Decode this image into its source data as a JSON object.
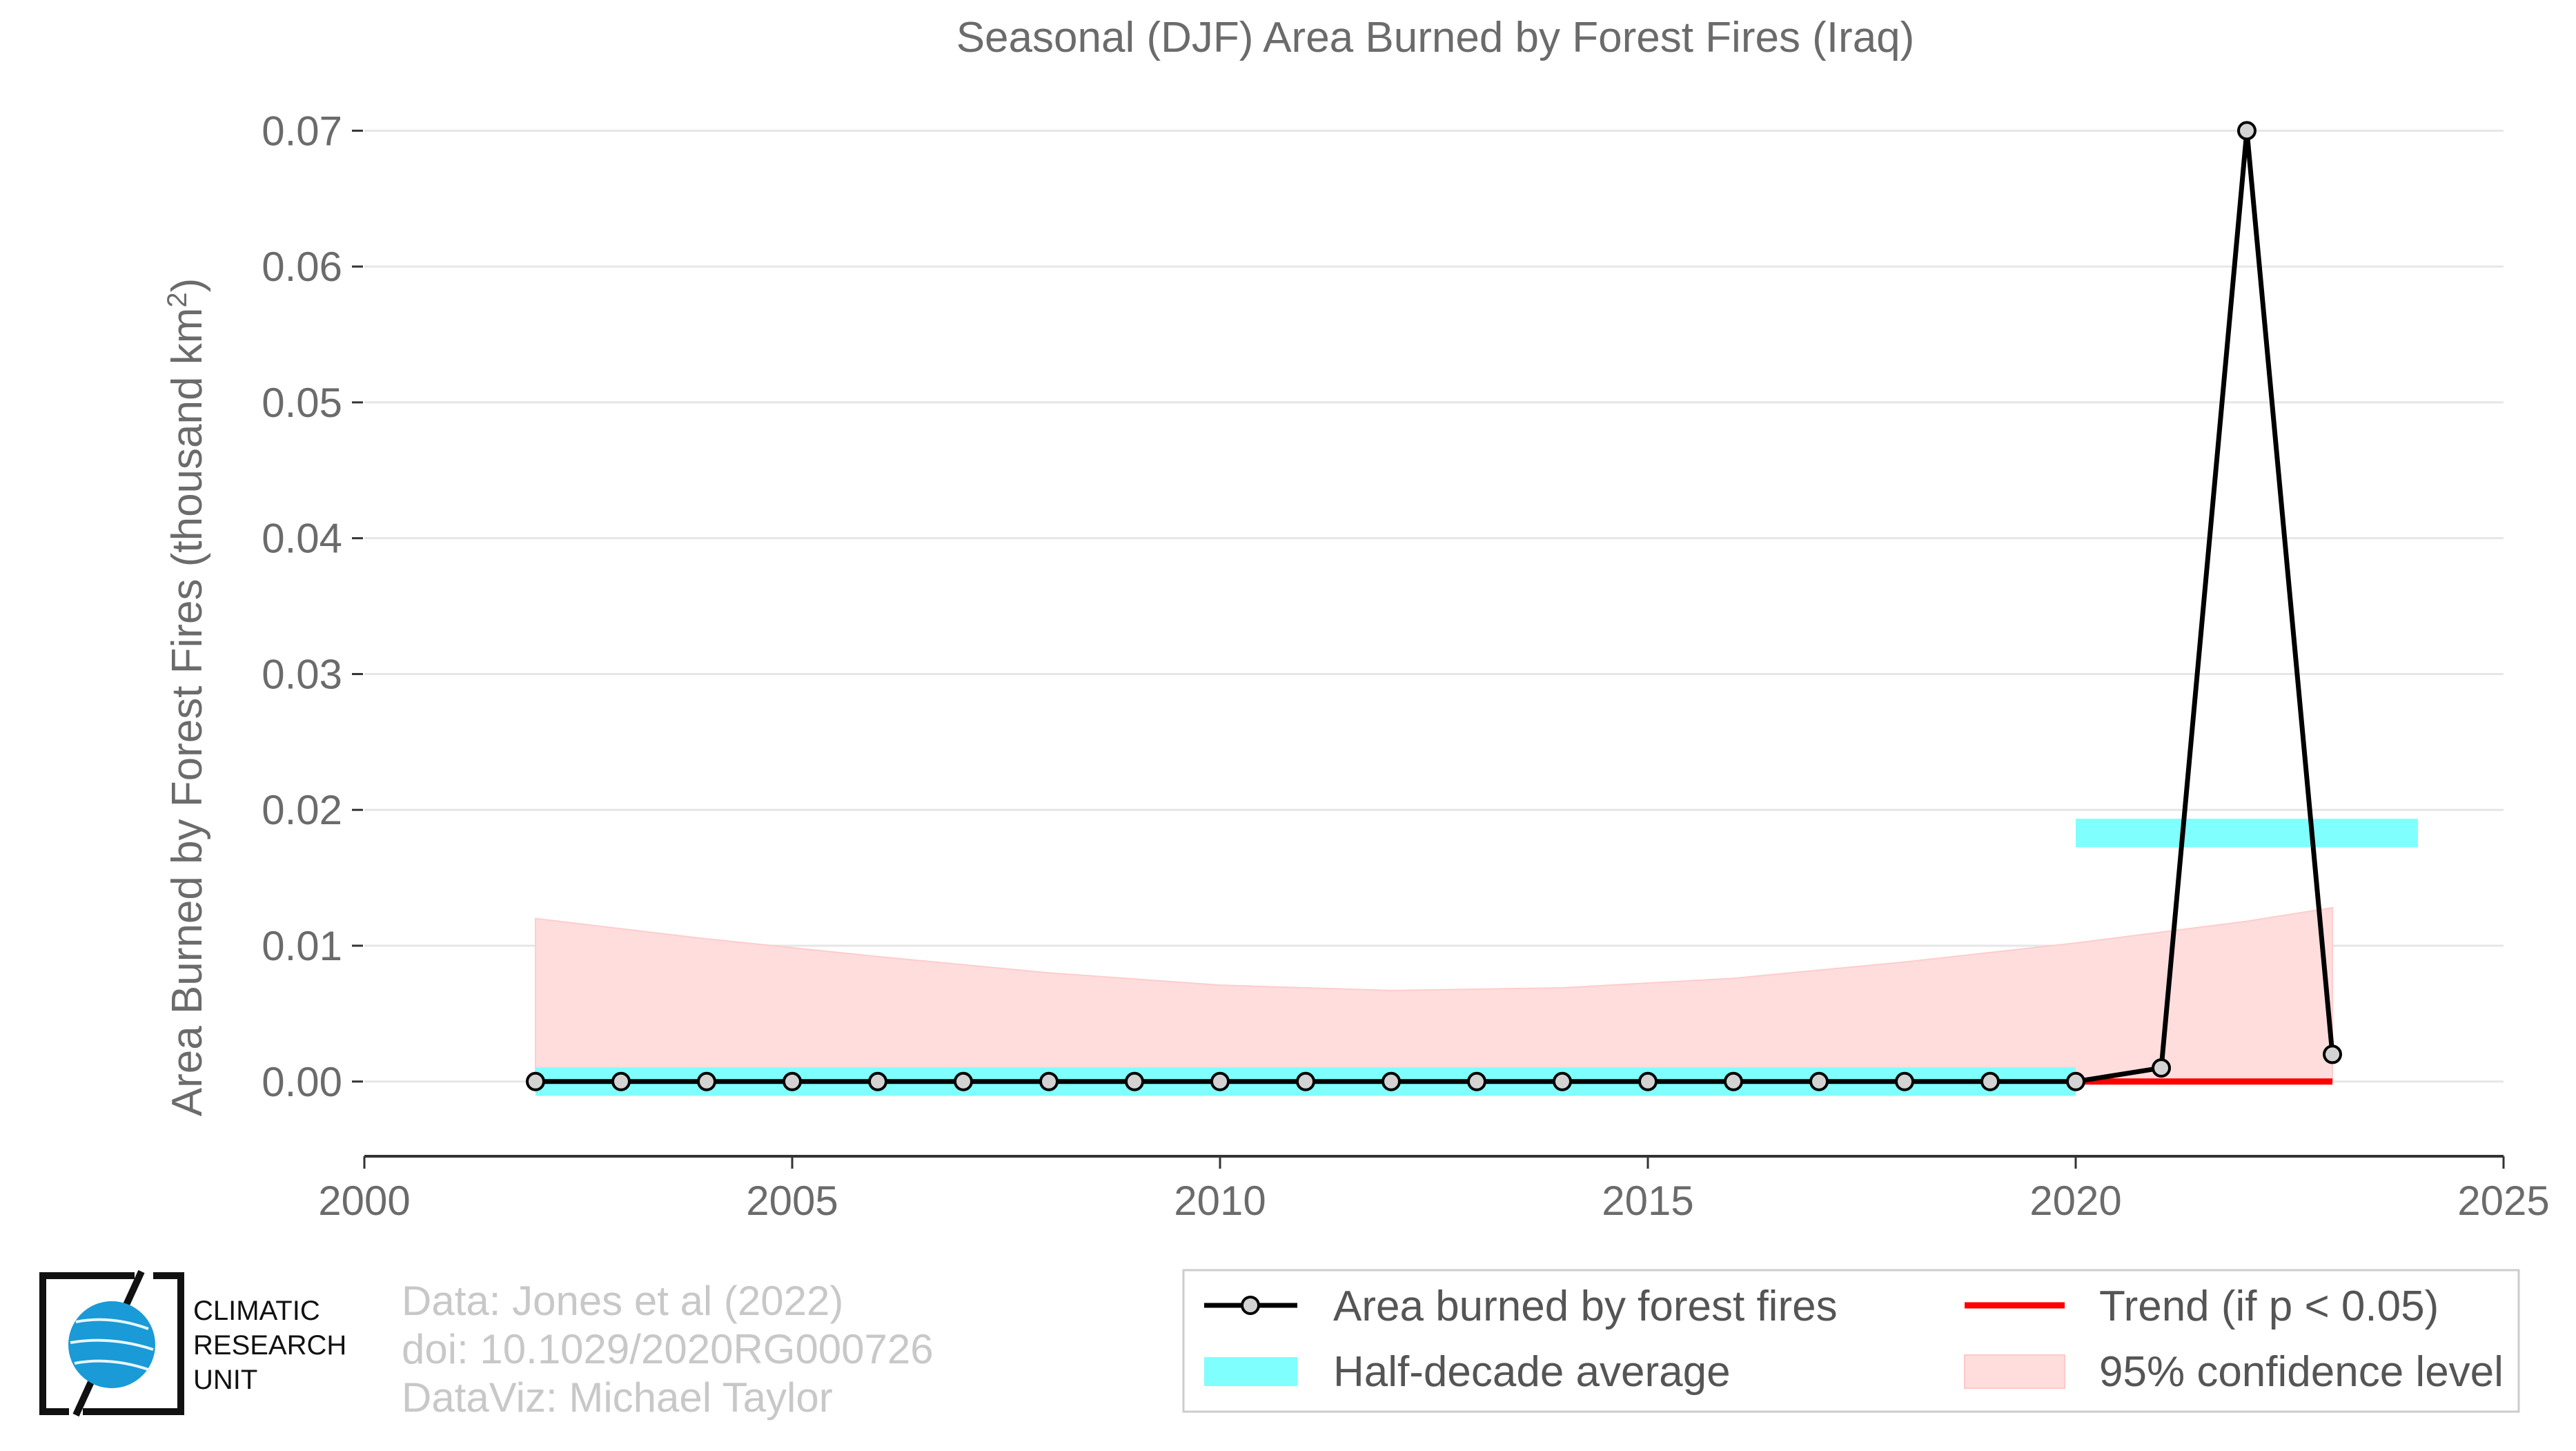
{
  "chart_data": {
    "type": "line",
    "title": "Seasonal (DJF) Area Burned by Forest Fires (Iraq)",
    "ylabel_main": "Area Burned by Forest Fires (thousand km",
    "ylabel_sup": "2",
    "ylabel_close": ")",
    "xlim": [
      2000,
      2025
    ],
    "ylim": [
      -0.0055,
      0.072
    ],
    "x_ticks": [
      2000,
      2005,
      2010,
      2015,
      2020,
      2025
    ],
    "y_ticks": [
      0.0,
      0.01,
      0.02,
      0.03,
      0.04,
      0.05,
      0.06,
      0.07
    ],
    "y_tick_labels": [
      "0.00",
      "0.01",
      "0.02",
      "0.03",
      "0.04",
      "0.05",
      "0.06",
      "0.07"
    ],
    "grid": "horizontal",
    "series": [
      {
        "name": "Area burned by forest fires",
        "color": "#000000",
        "marker_fill": "#d3d3d3",
        "x": [
          2002,
          2003,
          2004,
          2005,
          2006,
          2007,
          2008,
          2009,
          2010,
          2011,
          2012,
          2013,
          2014,
          2015,
          2016,
          2017,
          2018,
          2019,
          2020,
          2021,
          2022,
          2023
        ],
        "y": [
          0,
          0,
          0,
          0,
          0,
          0,
          0,
          0,
          0,
          0,
          0,
          0,
          0,
          0,
          0,
          0,
          0,
          0,
          0,
          0.001,
          0.07,
          0.002
        ]
      }
    ],
    "half_decade_average": {
      "name": "Half-decade average",
      "color": "#80ffff",
      "segments": [
        {
          "x0": 2002,
          "x1": 2020,
          "y": 0.0
        },
        {
          "x0": 2020,
          "x1": 2024,
          "y": 0.0183
        }
      ]
    },
    "trend": {
      "name": "Trend (if p < 0.05)",
      "color": "#ff0000",
      "x0": 2020,
      "x1": 2023,
      "y": 0.0
    },
    "confidence": {
      "name": "95% confidence level",
      "color": "#ffdddd",
      "x": [
        2002,
        2004,
        2006,
        2008,
        2010,
        2012,
        2014,
        2016,
        2018,
        2020,
        2022,
        2023
      ],
      "upper": [
        0.012,
        0.0105,
        0.0092,
        0.008,
        0.0071,
        0.0067,
        0.0069,
        0.0076,
        0.0088,
        0.0102,
        0.0118,
        0.0128
      ],
      "lower": [
        0,
        0,
        0,
        0,
        0,
        0,
        0,
        0,
        0,
        0,
        0,
        0
      ]
    },
    "legend_position": "bottom-right"
  },
  "credits": {
    "line1": "Data: Jones et al (2022)",
    "line2": "doi: 10.1029/2020RG000726",
    "line3": "DataViz: Michael Taylor"
  },
  "logo": {
    "line1": "CLIMATIC",
    "line2": "RESEARCH",
    "line3": "UNIT",
    "color": "#1a9ad6"
  }
}
